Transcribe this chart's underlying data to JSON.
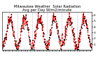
{
  "title": "Milwaukee Weather  Solar Radiation\nAvg per Day W/m2/minute",
  "title_fontsize": 3.8,
  "line_color": "red",
  "dot_color": "black",
  "line_style": "--",
  "linewidth": 0.6,
  "markersize": 0.8,
  "ylim": [
    0,
    6.5
  ],
  "yticks": [
    1,
    2,
    3,
    4,
    5,
    6
  ],
  "ytick_fontsize": 3.2,
  "xtick_fontsize": 2.5,
  "grid_color": "#999999",
  "background": "#ffffff",
  "num_years": 6,
  "weeks_per_year": 52,
  "vgrid_positions": [
    52,
    104,
    156,
    208,
    260
  ],
  "seed": 42
}
